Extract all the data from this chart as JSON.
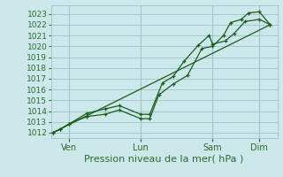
{
  "background_color": "#cce8ea",
  "grid_color": "#9dc4c8",
  "line_color": "#1a5c1a",
  "text_color": "#2d6b2d",
  "xlabel": "Pression niveau de la mer( hPa )",
  "ylim": [
    1011.5,
    1023.8
  ],
  "xlim": [
    0.0,
    6.3
  ],
  "yticks": [
    1012,
    1013,
    1014,
    1015,
    1016,
    1017,
    1018,
    1019,
    1020,
    1021,
    1022,
    1023
  ],
  "xtick_labels": [
    "Ven",
    "Lun",
    "Sam",
    "Dim"
  ],
  "xtick_positions": [
    0.5,
    2.5,
    4.5,
    5.8
  ],
  "vline_positions": [
    0.5,
    2.5,
    4.5,
    5.8
  ],
  "line1_x": [
    0.05,
    0.25,
    0.5,
    1.0,
    1.5,
    1.9,
    2.5,
    2.75,
    3.0,
    3.4,
    3.8,
    4.2,
    4.5,
    4.8,
    5.0,
    5.3,
    5.5,
    5.8,
    6.1
  ],
  "line1_y": [
    1012.0,
    1012.3,
    1012.8,
    1013.5,
    1013.7,
    1014.1,
    1013.3,
    1013.3,
    1015.5,
    1016.5,
    1017.3,
    1019.8,
    1020.0,
    1021.0,
    1022.2,
    1022.5,
    1023.1,
    1023.2,
    1022.0
  ],
  "line2_x": [
    0.05,
    0.25,
    0.5,
    1.0,
    1.5,
    1.9,
    2.5,
    2.75,
    3.1,
    3.4,
    3.7,
    4.1,
    4.4,
    4.5,
    4.85,
    5.1,
    5.4,
    5.8,
    6.1
  ],
  "line2_y": [
    1012.0,
    1012.3,
    1012.8,
    1013.8,
    1014.2,
    1014.5,
    1013.7,
    1013.7,
    1016.6,
    1017.2,
    1018.6,
    1020.1,
    1021.0,
    1020.2,
    1020.5,
    1021.2,
    1022.3,
    1022.5,
    1022.0
  ],
  "trend_x": [
    0.05,
    6.1
  ],
  "trend_y": [
    1012.0,
    1022.0
  ],
  "xlabel_fontsize": 8,
  "tick_fontsize": 6.5,
  "xtick_fontsize": 7
}
